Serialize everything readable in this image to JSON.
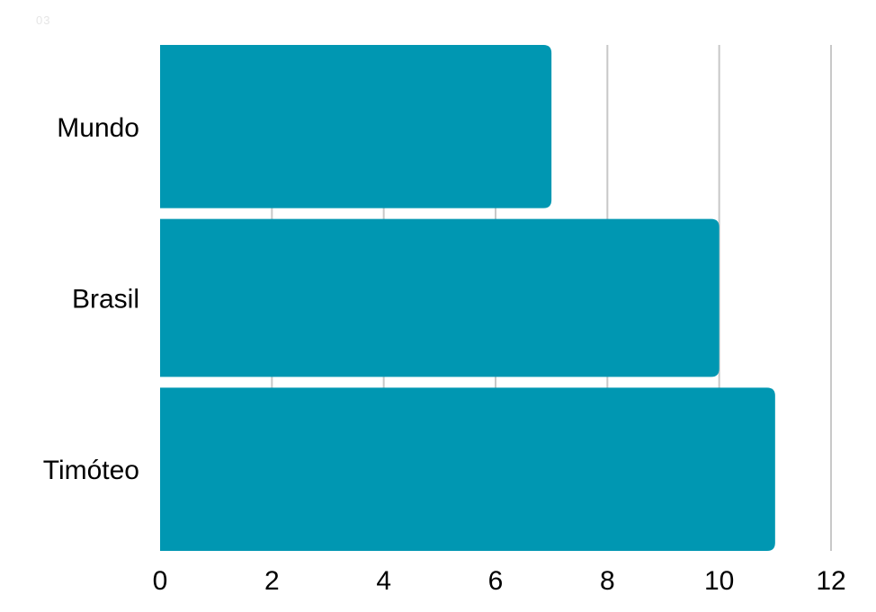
{
  "page_marker": "03",
  "chart_data": {
    "type": "bar",
    "orientation": "horizontal",
    "categories": [
      "Mundo",
      "Brasil",
      "Timóteo"
    ],
    "values": [
      7,
      10,
      11
    ],
    "xlim": [
      0,
      12
    ],
    "xticks": [
      "0",
      "2",
      "4",
      "6",
      "8",
      "10",
      "12"
    ],
    "grid": "vertical",
    "colors": {
      "bar": "#0097b2",
      "grid": "#c8c8c8",
      "text": "#000000"
    }
  }
}
